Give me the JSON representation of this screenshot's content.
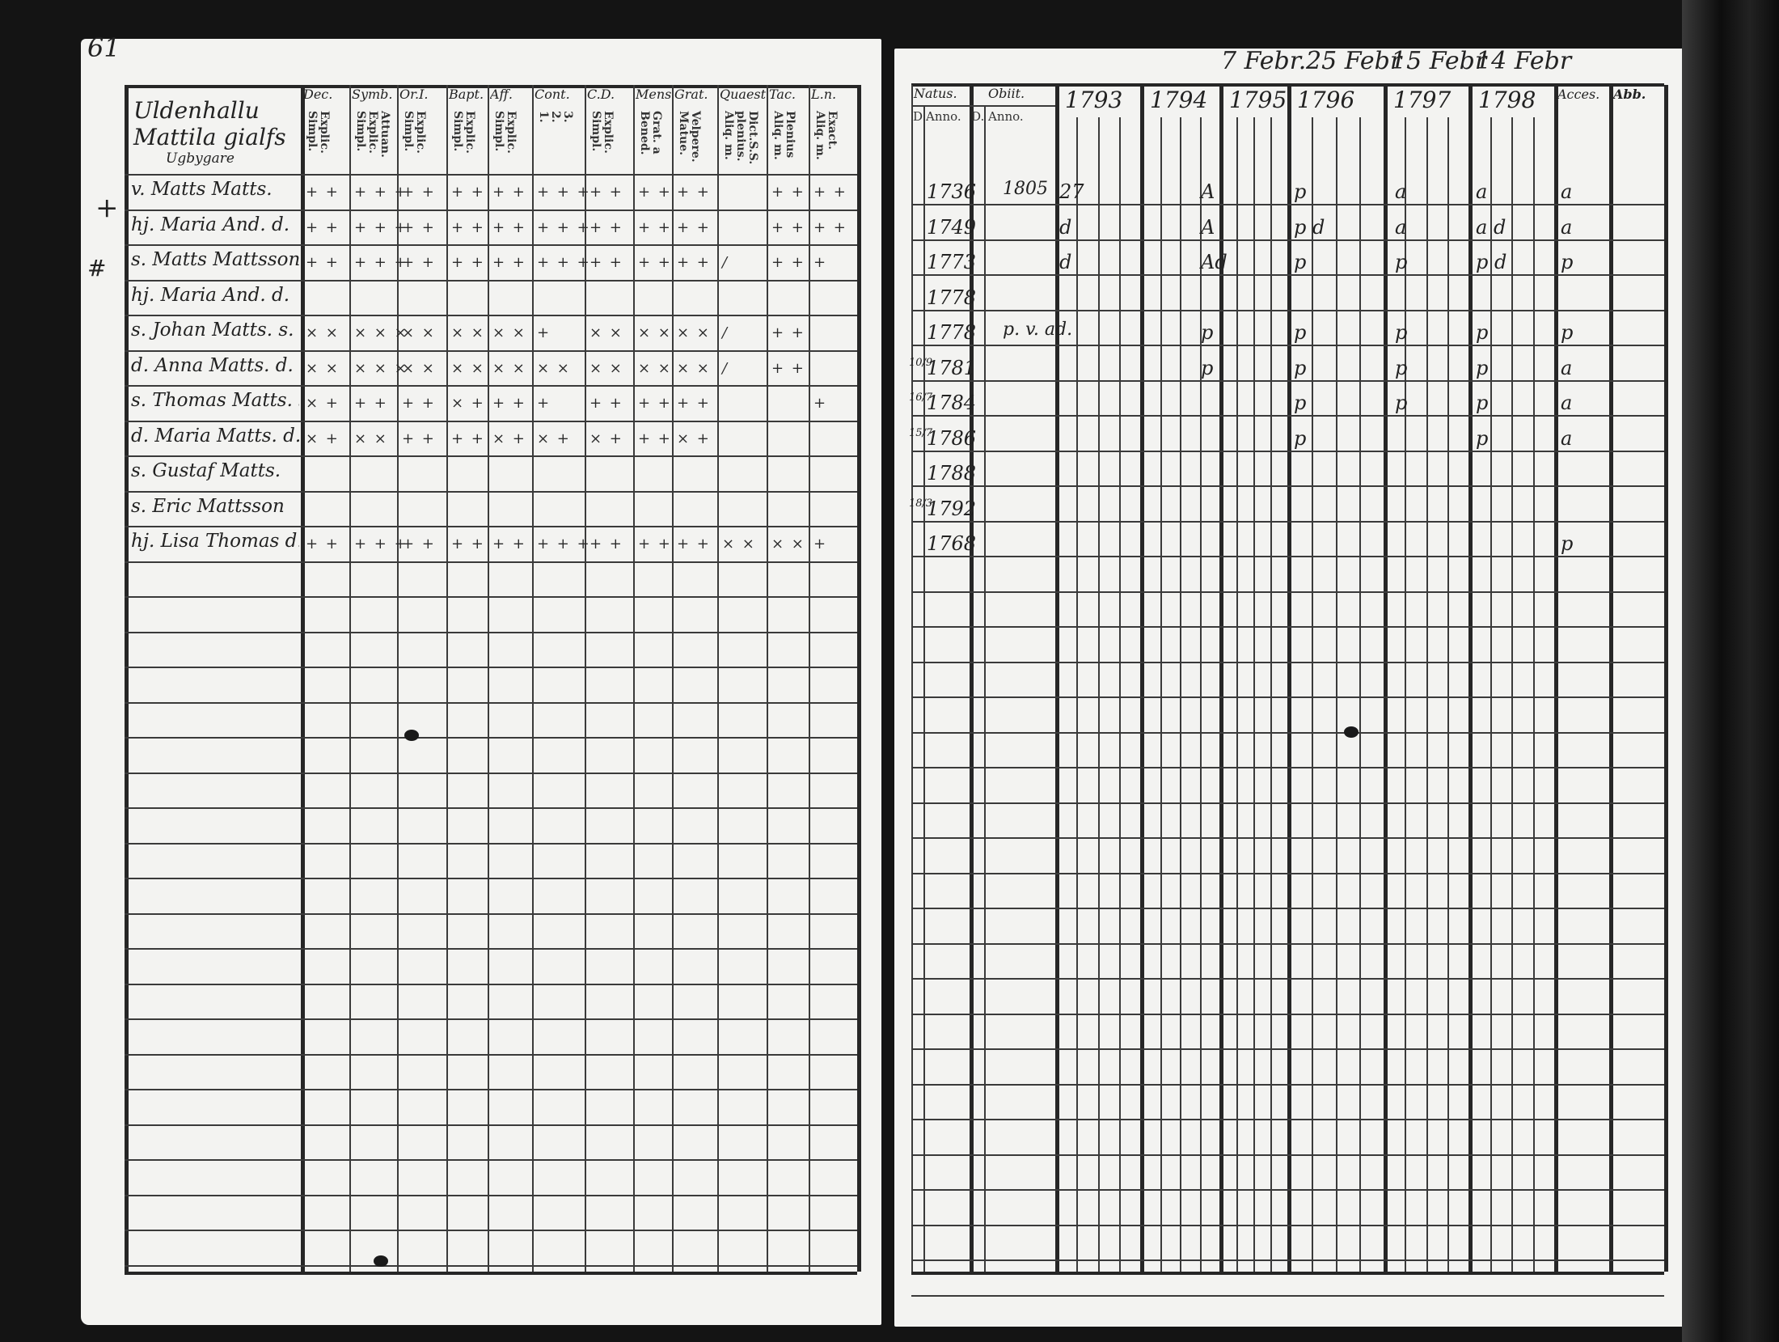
{
  "left_page": {
    "page_number": "61",
    "name_header": [
      "Uldenhallu",
      "Mattila gialfs",
      "Ugbygare"
    ],
    "margin_marks": [
      "+",
      "#"
    ],
    "columns": [
      {
        "head": "Dec.",
        "sub": "Explic.\nSimpl."
      },
      {
        "head": "Symb.",
        "sub": "Attuan.\nExplic.\nSimpl."
      },
      {
        "head": "Or.I.",
        "sub": "Explic.\nSimpl."
      },
      {
        "head": "Bapt.",
        "sub": "Explic.\nSimpl."
      },
      {
        "head": "Aff.",
        "sub": "Explic.\nSimpl."
      },
      {
        "head": "Cont.",
        "sub": "3.\n2.\n1."
      },
      {
        "head": "C.D.",
        "sub": "Explic.\nSimpl."
      },
      {
        "head": "Mens.",
        "sub": "Grat. a\nBened."
      },
      {
        "head": "Grat.",
        "sub": "Velpere.\nMatue."
      },
      {
        "head": "Quaest.",
        "sub": "Dict.S.S.\nplenius.\nAliq. m."
      },
      {
        "head": "Tac.",
        "sub": "Plenius\nAliq. m."
      },
      {
        "head": "L.n.",
        "sub": "Exact.\nAliq. m."
      }
    ],
    "rows": [
      {
        "name": "v. Matts Matts.",
        "marks": [
          "+ +",
          "+ + +",
          "+ +",
          "+ +",
          "+ +",
          "+ + +",
          "+ +",
          "+ +",
          "+ +",
          "",
          "+ +",
          "+ +"
        ]
      },
      {
        "name": "hj. Maria And. d.",
        "marks": [
          "+ +",
          "+ + +",
          "+ +",
          "+ +",
          "+ +",
          "+ + +",
          "+ +",
          "+ +",
          "+ +",
          "",
          "+ +",
          "+ +"
        ]
      },
      {
        "name": "s. Matts Mattsson",
        "marks": [
          "+ +",
          "+ + +",
          "+ +",
          "+ +",
          "+ +",
          "+ + +",
          "+ +",
          "+ +",
          "+ +",
          "/",
          "+ +",
          "+"
        ]
      },
      {
        "name": "hj. Maria And. d.",
        "marks": [
          "",
          "",
          "",
          "",
          "",
          "",
          "",
          "",
          "",
          "",
          "",
          ""
        ]
      },
      {
        "name": "s. Johan Matts. s.",
        "marks": [
          "× ×",
          "× × ×",
          "× ×",
          "× ×",
          "× ×",
          "+",
          "× ×",
          "× ×",
          "× ×",
          "/",
          "+ +",
          ""
        ]
      },
      {
        "name": "d. Anna Matts. d.",
        "marks": [
          "× ×",
          "× × ×",
          "× ×",
          "× ×",
          "× ×",
          "× ×",
          "× ×",
          "× ×",
          "× ×",
          "/",
          "+ +",
          ""
        ]
      },
      {
        "name": "s. Thomas Matts. s.",
        "marks": [
          "× +",
          "+ +",
          "+ +",
          "× +",
          "+ +",
          "+",
          "+ +",
          "+ +",
          "+ +",
          "",
          "",
          "+"
        ]
      },
      {
        "name": "d. Maria Matts. d.",
        "marks": [
          "× +",
          "× ×",
          "+ +",
          "+ +",
          "× +",
          "× +",
          "× +",
          "+ +",
          "× +",
          "",
          "",
          ""
        ]
      },
      {
        "name": "s. Gustaf Matts.",
        "marks": [
          "",
          "",
          "",
          "",
          "",
          "",
          "",
          "",
          "",
          "",
          "",
          ""
        ]
      },
      {
        "name": "s. Eric Mattsson",
        "marks": [
          "",
          "",
          "",
          "",
          "",
          "",
          "",
          "",
          "",
          "",
          "",
          ""
        ]
      },
      {
        "name": "hj. Lisa Thomas d.",
        "marks": [
          "+ +",
          "+ + +",
          "+ +",
          "+ +",
          "+ +",
          "+ + +",
          "+ +",
          "+ +",
          "+ +",
          "× ×",
          "× ×",
          "+"
        ]
      }
    ]
  },
  "right_page": {
    "top_annotations": [
      "7 Febr.",
      "25 Febr",
      "15 Febr",
      "14 Febr"
    ],
    "natus_header": "Natus.",
    "obiit_header": "Obiit.",
    "day_label": "D.",
    "anno_label": "Anno.",
    "years": [
      "1793",
      "1794",
      "1795",
      "1796",
      "1797",
      "1798"
    ],
    "accessit_header": "Acces.",
    "last_header": "Abb.",
    "rows": [
      {
        "natus_day": "",
        "natus_year": "1736",
        "obiit": "1805",
        "y1793": "27",
        "y1795": "A",
        "y1796": "p",
        "y1797": "a",
        "y1798": "a",
        "accessit": "a"
      },
      {
        "natus_day": "",
        "natus_year": "1749",
        "obiit": "",
        "y1793": "d",
        "y1795": "A",
        "y1796": "p d",
        "y1797": "a",
        "y1798": "a d",
        "accessit": "a"
      },
      {
        "natus_day": "",
        "natus_year": "1773",
        "obiit": "",
        "y1793": "d",
        "y1795": "Ad",
        "y1796": "p",
        "y1797": "p",
        "y1798": "p d",
        "accessit": "p"
      },
      {
        "natus_day": "",
        "natus_year": "1778",
        "obiit": "",
        "y1793": "",
        "y1795": "",
        "y1796": "",
        "y1797": "",
        "y1798": "",
        "accessit": ""
      },
      {
        "natus_day": "",
        "natus_year": "1778",
        "obiit": "p. v. ad.",
        "y1793": "",
        "y1795": "p",
        "y1796": "p",
        "y1797": "p",
        "y1798": "p",
        "accessit": "p"
      },
      {
        "natus_day": "10/9",
        "natus_year": "1781",
        "obiit": "",
        "y1793": "",
        "y1795": "p",
        "y1796": "p",
        "y1797": "p",
        "y1798": "p",
        "accessit": "a"
      },
      {
        "natus_day": "16/7",
        "natus_year": "1784",
        "obiit": "",
        "y1793": "",
        "y1795": "",
        "y1796": "p",
        "y1797": "p",
        "y1798": "p",
        "accessit": "a"
      },
      {
        "natus_day": "15/7",
        "natus_year": "1786",
        "obiit": "",
        "y1793": "",
        "y1795": "",
        "y1796": "p",
        "y1797": "",
        "y1798": "p",
        "accessit": "a"
      },
      {
        "natus_day": "",
        "natus_year": "1788",
        "obiit": "",
        "y1793": "",
        "y1795": "",
        "y1796": "",
        "y1797": "",
        "y1798": "",
        "accessit": ""
      },
      {
        "natus_day": "18/3",
        "natus_year": "1792",
        "obiit": "",
        "y1793": "",
        "y1795": "",
        "y1796": "",
        "y1797": "",
        "y1798": "",
        "accessit": ""
      },
      {
        "natus_day": "",
        "natus_year": "1768",
        "obiit": "",
        "y1793": "",
        "y1795": "",
        "y1796": "",
        "y1797": "",
        "y1798": "",
        "accessit": "p"
      }
    ]
  },
  "colors": {
    "paper": "#f3f3f1",
    "ink": "#222222",
    "background": "#141414"
  }
}
